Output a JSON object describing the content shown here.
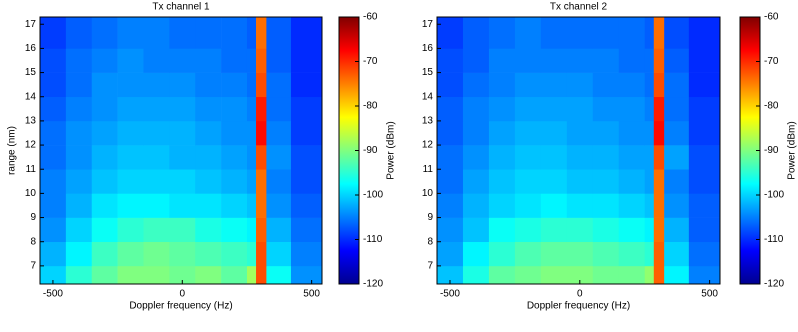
{
  "chart_data": [
    {
      "type": "heatmap",
      "title": "Tx channel 1",
      "xlabel": "Doppler frequency (Hz)",
      "ylabel": "range (nm)",
      "xbins": [
        -550,
        -450,
        -350,
        -250,
        -150,
        -50,
        50,
        150,
        250,
        285,
        325,
        420,
        540
      ],
      "ybins": [
        6.25,
        7,
        8,
        9,
        10,
        11,
        12,
        13,
        14,
        15,
        16,
        17.3
      ],
      "values": [
        [
          -100,
          -95,
          -92,
          -90,
          -90,
          -91,
          -90,
          -92,
          -88,
          -72,
          -97,
          -104
        ],
        [
          -102,
          -98,
          -94,
          -92,
          -91,
          -92,
          -93,
          -94,
          -95,
          -72,
          -100,
          -105
        ],
        [
          -104,
          -100,
          -97,
          -95,
          -94,
          -94,
          -96,
          -97,
          -98,
          -73,
          -102,
          -106
        ],
        [
          -105,
          -102,
          -99,
          -98,
          -98,
          -99,
          -99,
          -100,
          -101,
          -74,
          -104,
          -107
        ],
        [
          -105,
          -103,
          -101,
          -100,
          -100,
          -100,
          -101,
          -102,
          -103,
          -74,
          -105,
          -108
        ],
        [
          -106,
          -104,
          -102,
          -101,
          -101,
          -102,
          -102,
          -103,
          -104,
          -72,
          -104,
          -108
        ],
        [
          -106,
          -104,
          -103,
          -102,
          -102,
          -102,
          -103,
          -104,
          -104,
          -68,
          -105,
          -109
        ],
        [
          -107,
          -105,
          -104,
          -103,
          -103,
          -103,
          -104,
          -104,
          -105,
          -69,
          -106,
          -109
        ],
        [
          -108,
          -106,
          -104,
          -104,
          -104,
          -104,
          -105,
          -105,
          -106,
          -72,
          -106,
          -110
        ],
        [
          -108,
          -106,
          -105,
          -104,
          -105,
          -105,
          -105,
          -106,
          -106,
          -73,
          -107,
          -110
        ],
        [
          -109,
          -107,
          -106,
          -105,
          -105,
          -106,
          -106,
          -106,
          -107,
          -74,
          -107,
          -110
        ]
      ],
      "xlim": [
        -550,
        540
      ],
      "ylim": [
        6.25,
        17.3
      ],
      "xticks": [
        -500,
        0,
        500
      ],
      "yticks": [
        7,
        8,
        9,
        10,
        11,
        12,
        13,
        14,
        15,
        16,
        17
      ],
      "colorbar": {
        "label": "Power (dBm)",
        "lim": [
          -120,
          -60
        ],
        "ticks": [
          -60,
          -70,
          -80,
          -90,
          -100,
          -110,
          -120
        ]
      }
    },
    {
      "type": "heatmap",
      "title": "Tx channel 2",
      "xlabel": "Doppler frequency (Hz)",
      "xbins": [
        -550,
        -450,
        -350,
        -250,
        -150,
        -50,
        50,
        150,
        250,
        285,
        325,
        420,
        540
      ],
      "ybins": [
        6.25,
        7,
        8,
        9,
        10,
        11,
        12,
        13,
        14,
        15,
        16,
        17.3
      ],
      "values": [
        [
          -101,
          -96,
          -92,
          -91,
          -90,
          -90,
          -91,
          -91,
          -89,
          -73,
          -98,
          -105
        ],
        [
          -103,
          -98,
          -95,
          -93,
          -92,
          -92,
          -93,
          -94,
          -95,
          -73,
          -100,
          -106
        ],
        [
          -104,
          -101,
          -97,
          -96,
          -95,
          -95,
          -96,
          -97,
          -98,
          -74,
          -102,
          -107
        ],
        [
          -105,
          -102,
          -100,
          -99,
          -98,
          -99,
          -99,
          -100,
          -101,
          -74,
          -104,
          -107
        ],
        [
          -106,
          -103,
          -101,
          -100,
          -100,
          -101,
          -101,
          -102,
          -103,
          -74,
          -105,
          -108
        ],
        [
          -106,
          -104,
          -102,
          -101,
          -101,
          -102,
          -102,
          -103,
          -103,
          -72,
          -103,
          -108
        ],
        [
          -107,
          -105,
          -103,
          -102,
          -102,
          -103,
          -103,
          -104,
          -104,
          -68,
          -105,
          -109
        ],
        [
          -107,
          -105,
          -104,
          -103,
          -103,
          -103,
          -104,
          -104,
          -105,
          -69,
          -106,
          -109
        ],
        [
          -108,
          -106,
          -105,
          -104,
          -104,
          -104,
          -105,
          -105,
          -106,
          -72,
          -106,
          -110
        ],
        [
          -108,
          -107,
          -105,
          -105,
          -105,
          -105,
          -105,
          -106,
          -106,
          -73,
          -107,
          -110
        ],
        [
          -109,
          -107,
          -106,
          -105,
          -106,
          -106,
          -106,
          -106,
          -107,
          -74,
          -108,
          -110
        ]
      ],
      "xlim": [
        -550,
        540
      ],
      "ylim": [
        6.25,
        17.3
      ],
      "xticks": [
        -500,
        0,
        500
      ],
      "yticks": [
        7,
        8,
        9,
        10,
        11,
        12,
        13,
        14,
        15,
        16,
        17
      ],
      "colorbar": {
        "label": "Power (dBm)",
        "lim": [
          -120,
          -60
        ],
        "ticks": [
          -60,
          -70,
          -80,
          -90,
          -100,
          -110,
          -120
        ]
      }
    }
  ]
}
